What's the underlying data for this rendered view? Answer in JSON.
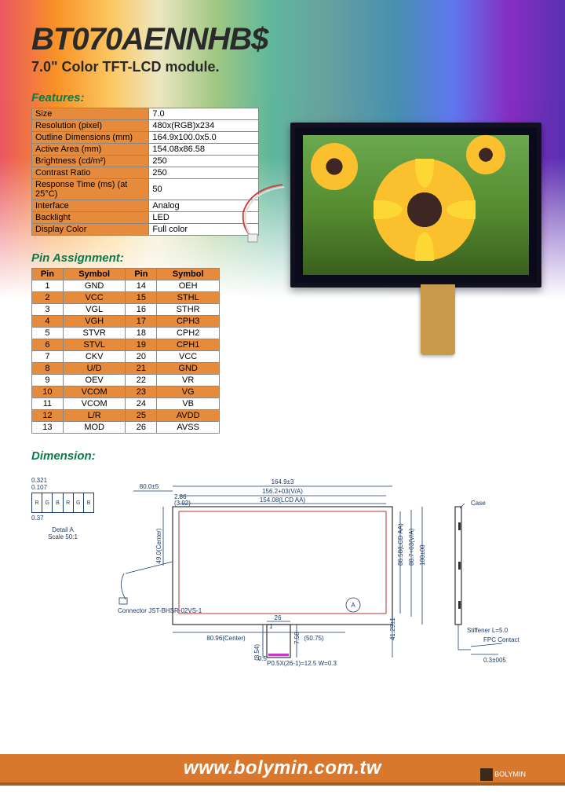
{
  "title": "BT070AENNHB$",
  "subtitle": "7.0\" Color TFT-LCD module.",
  "sections": {
    "features": "Features:",
    "pins": "Pin Assignment:",
    "dimension": "Dimension:"
  },
  "features_table": {
    "label_bg": "#e68a3c",
    "rows": [
      {
        "label": "Size",
        "value": "7.0"
      },
      {
        "label": "Resolution (pixel)",
        "value": "480x(RGB)x234"
      },
      {
        "label": "Outline Dimensions (mm)",
        "value": "164.9x100.0x5.0"
      },
      {
        "label": "Active Area (mm)",
        "value": "154.08x86.58"
      },
      {
        "label": "Brightness (cd/m²)",
        "value": "250"
      },
      {
        "label": "Contrast Ratio",
        "value": "250"
      },
      {
        "label": "Response Time (ms) (at 25°C)",
        "value": "50"
      },
      {
        "label": "Interface",
        "value": "Analog"
      },
      {
        "label": "Backlight",
        "value": "LED"
      },
      {
        "label": "Display Color",
        "value": "Full color"
      }
    ]
  },
  "pin_table": {
    "header_bg": "#e68a3c",
    "stripe_bg": "#e68a3c",
    "headers": [
      "Pin",
      "Symbol",
      "Pin",
      "Symbol"
    ],
    "rows": [
      [
        "1",
        "GND",
        "14",
        "OEH"
      ],
      [
        "2",
        "VCC",
        "15",
        "STHL"
      ],
      [
        "3",
        "VGL",
        "16",
        "STHR"
      ],
      [
        "4",
        "VGH",
        "17",
        "CPH3"
      ],
      [
        "5",
        "STVR",
        "18",
        "CPH2"
      ],
      [
        "6",
        "STVL",
        "19",
        "CPH1"
      ],
      [
        "7",
        "CKV",
        "20",
        "VCC"
      ],
      [
        "8",
        "U/D",
        "21",
        "GND"
      ],
      [
        "9",
        "OEV",
        "22",
        "VR"
      ],
      [
        "10",
        "VCOM",
        "23",
        "VG"
      ],
      [
        "11",
        "VCOM",
        "24",
        "VB"
      ],
      [
        "12",
        "L/R",
        "25",
        "AVDD"
      ],
      [
        "13",
        "MOD",
        "26",
        "AVSS"
      ]
    ],
    "stripe_rows": [
      1,
      3,
      5,
      7,
      9,
      11
    ]
  },
  "dimension": {
    "detail_a_label": "Detail A",
    "detail_a_scale": "Scale 50:1",
    "detail_a_cells": [
      "R",
      "G",
      "B",
      "R",
      "G",
      "B"
    ],
    "detail_a_w": "0.321",
    "detail_a_h": "0.107",
    "detail_a_total": "0.37",
    "top_offset": "80.0±5",
    "outline_w": "164.9±3",
    "va_w": "156.2+03(V/A)",
    "lcd_aa_w": "154.08(LCD AA)",
    "left1": "2.86",
    "left2": "(3.92)",
    "height_center": "49.0(Center)",
    "height_lcd_aa": "86.58(LCD AA)",
    "height_va": "88.7+03(V/A)",
    "height_total": "100±00",
    "connector": "Connector JST-BHSR-02VS-1",
    "bottom_center": "80.96(Center)",
    "bottom_right": "(50.75)",
    "tail_w": "26",
    "tail_h": "(8.54)",
    "tail_h2": "7.58",
    "tail_r": "41.29±1",
    "pitch": "P0.5X(26-1)=12.5 W=0.3",
    "tail_gap": "0.5",
    "tail_one": "1",
    "case": "Case",
    "stiffener": "Stiffener L=5.0",
    "fpc": "FPC Contact",
    "side_t": "0.3±005"
  },
  "footer": {
    "url": "www.bolymin.com.tw",
    "brand": "BOLYMIN"
  },
  "colors": {
    "accent": "#e68a3c",
    "section_heading": "#0a7a4a",
    "footer_bar": "#d9772c",
    "dim_line": "#1a3a6a"
  }
}
